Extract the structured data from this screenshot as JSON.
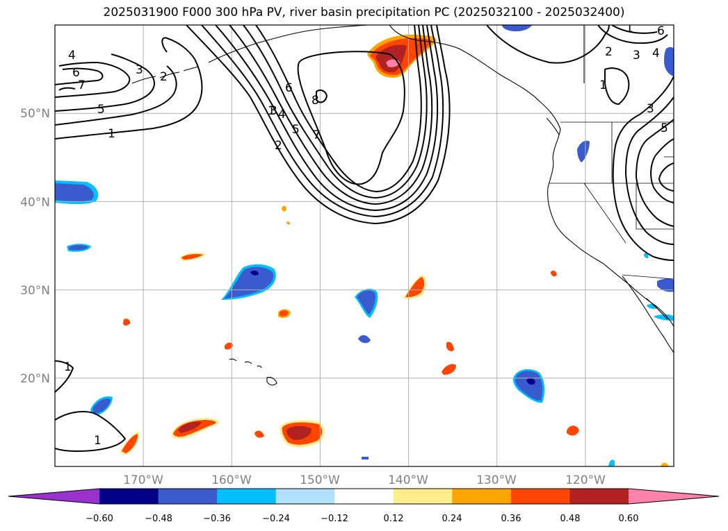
{
  "title": "2025031900 F000 300 hPa PV, river basin precipitation PC (2025032100 - 2025032400)",
  "map": {
    "projection": "PlateCarree",
    "lon_range": [
      -180,
      -110
    ],
    "lat_range": [
      10,
      60
    ],
    "lat_labels": [
      "50°N",
      "40°N",
      "30°N",
      "20°N"
    ],
    "lat_values": [
      50,
      40,
      30,
      20
    ],
    "lon_labels": [
      "170°W",
      "160°W",
      "150°W",
      "140°W",
      "130°W",
      "120°W"
    ],
    "lon_values": [
      -170,
      -160,
      -150,
      -140,
      -130,
      -120
    ],
    "gridline_color": "#b0b0b0",
    "coastline_color": "#000000"
  },
  "contours": {
    "variable": "300 hPa PV",
    "levels": [
      1,
      2,
      3,
      4,
      5,
      6,
      7,
      8
    ],
    "labels_shown": [
      "4",
      "6",
      "7",
      "3",
      "2",
      "5",
      "1",
      "1",
      "2",
      "3",
      "4",
      "5",
      "6",
      "7",
      "8",
      "1",
      "3",
      "4",
      "5",
      "6",
      "2",
      "3",
      "1",
      "1",
      "1"
    ]
  },
  "colorbar": {
    "levels": [
      "−0.60",
      "−0.48",
      "−0.36",
      "−0.24",
      "−0.12",
      "0.12",
      "0.24",
      "0.36",
      "0.48",
      "0.60"
    ],
    "colors": [
      "#9932cc",
      "#00008b",
      "#3a5bcd",
      "#00bfff",
      "#b0e2ff",
      "#ffffff",
      "#ffec8b",
      "#ffa500",
      "#ff4500",
      "#b22222",
      "#ff82ab"
    ]
  }
}
